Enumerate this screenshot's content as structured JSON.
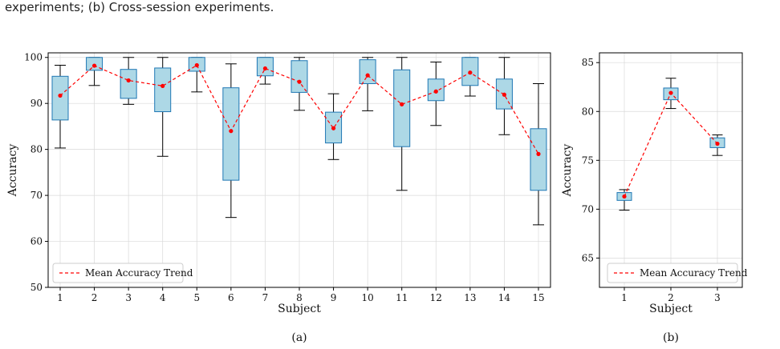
{
  "caption_top": "experiments; (b) Cross-session experiments.",
  "chart_data": [
    {
      "type": "box",
      "panel_label": "(a)",
      "xlabel": "Subject",
      "ylabel": "Accuracy",
      "ylim": [
        50,
        101
      ],
      "yticks": [
        50,
        60,
        70,
        80,
        90,
        100
      ],
      "categories": [
        "1",
        "2",
        "3",
        "4",
        "5",
        "6",
        "7",
        "8",
        "9",
        "10",
        "11",
        "12",
        "13",
        "14",
        "15"
      ],
      "boxes": [
        {
          "whislo": 80.3,
          "q1": 86.4,
          "q3": 95.9,
          "whishi": 98.3
        },
        {
          "whislo": 93.9,
          "q1": 97.2,
          "q3": 100,
          "whishi": 100
        },
        {
          "whislo": 89.8,
          "q1": 91.1,
          "q3": 97.4,
          "whishi": 100
        },
        {
          "whislo": 78.5,
          "q1": 88.2,
          "q3": 97.7,
          "whishi": 100
        },
        {
          "whislo": 92.5,
          "q1": 97.0,
          "q3": 100,
          "whishi": 100
        },
        {
          "whislo": 65.2,
          "q1": 73.3,
          "q3": 93.4,
          "whishi": 98.6
        },
        {
          "whislo": 94.2,
          "q1": 96.0,
          "q3": 100,
          "whishi": 100
        },
        {
          "whislo": 88.5,
          "q1": 92.4,
          "q3": 99.3,
          "whishi": 100
        },
        {
          "whislo": 77.8,
          "q1": 81.4,
          "q3": 88.1,
          "whishi": 92.1
        },
        {
          "whislo": 88.4,
          "q1": 94.3,
          "q3": 99.5,
          "whishi": 100
        },
        {
          "whislo": 71.1,
          "q1": 80.6,
          "q3": 97.3,
          "whishi": 100
        },
        {
          "whislo": 85.2,
          "q1": 90.6,
          "q3": 95.3,
          "whishi": 99.0
        },
        {
          "whislo": 91.6,
          "q1": 93.9,
          "q3": 100,
          "whishi": 100
        },
        {
          "whislo": 83.2,
          "q1": 88.8,
          "q3": 95.3,
          "whishi": 100
        },
        {
          "whislo": 63.6,
          "q1": 71.1,
          "q3": 84.5,
          "whishi": 94.3
        }
      ],
      "means": [
        91.7,
        98.2,
        95.0,
        93.8,
        98.3,
        84.0,
        97.6,
        94.7,
        84.6,
        96.1,
        89.8,
        92.6,
        96.7,
        91.9,
        79.0
      ],
      "legend": {
        "label": "Mean Accuracy Trend",
        "position": "lower-left"
      },
      "grid": true
    },
    {
      "type": "box",
      "panel_label": "(b)",
      "xlabel": "Subject",
      "ylabel": "Accuracy",
      "ylim": [
        62,
        86
      ],
      "yticks": [
        65,
        70,
        75,
        80,
        85
      ],
      "categories": [
        "1",
        "2",
        "3"
      ],
      "boxes": [
        {
          "whislo": 69.9,
          "q1": 70.9,
          "q3": 71.7,
          "whishi": 72.0
        },
        {
          "whislo": 80.3,
          "q1": 81.2,
          "q3": 82.4,
          "whishi": 83.4
        },
        {
          "whislo": 75.5,
          "q1": 76.3,
          "q3": 77.3,
          "whishi": 77.6
        }
      ],
      "means": [
        71.3,
        81.9,
        76.7
      ],
      "legend": {
        "label": "Mean Accuracy Trend",
        "position": "lower-right"
      },
      "grid": true
    }
  ],
  "colors": {
    "box_fill": "#add8e6",
    "box_edge": "#1f77b4",
    "mean": "#ff0000",
    "grid": "#d9d9d9",
    "axis": "#000000",
    "whisker": "#000000"
  }
}
